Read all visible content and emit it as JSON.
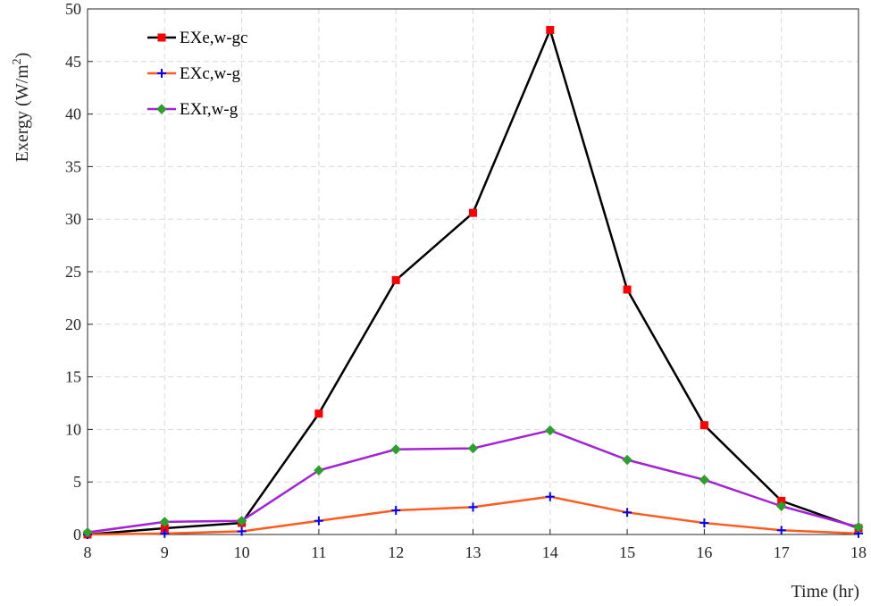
{
  "chart_data": {
    "type": "line",
    "title": "",
    "xlabel": "Time (hr)",
    "ylabel": "Exergy (W/m",
    "ylabel_sup": "2",
    "ylabel_end": ")",
    "x": [
      8,
      9,
      10,
      11,
      12,
      13,
      14,
      15,
      16,
      17,
      18
    ],
    "xlim": [
      8,
      18
    ],
    "ylim": [
      0,
      50
    ],
    "xticks": [
      8,
      9,
      10,
      11,
      12,
      13,
      14,
      15,
      16,
      17,
      18
    ],
    "yticks": [
      0,
      5,
      10,
      15,
      20,
      25,
      30,
      35,
      40,
      45,
      50
    ],
    "grid": true,
    "grid_style": "dashed",
    "legend_position": "top-left",
    "series": [
      {
        "name": "EXe,w-gc",
        "values": [
          0.0,
          0.6,
          1.1,
          11.5,
          24.2,
          30.6,
          48.0,
          23.3,
          10.4,
          3.2,
          0.6
        ],
        "line_color": "#000000",
        "marker": "square",
        "marker_color": "#ff0000"
      },
      {
        "name": "EXc,w-g",
        "values": [
          0.0,
          0.1,
          0.3,
          1.3,
          2.3,
          2.6,
          3.6,
          2.1,
          1.1,
          0.4,
          0.1
        ],
        "line_color": "#ff5a1f",
        "marker": "plus",
        "marker_color": "#0000ff"
      },
      {
        "name": "EXr,w-g",
        "values": [
          0.2,
          1.2,
          1.3,
          6.1,
          8.1,
          8.2,
          9.9,
          7.1,
          5.2,
          2.7,
          0.7
        ],
        "line_color": "#a322d6",
        "marker": "diamond",
        "marker_color": "#2ca02c"
      }
    ]
  }
}
